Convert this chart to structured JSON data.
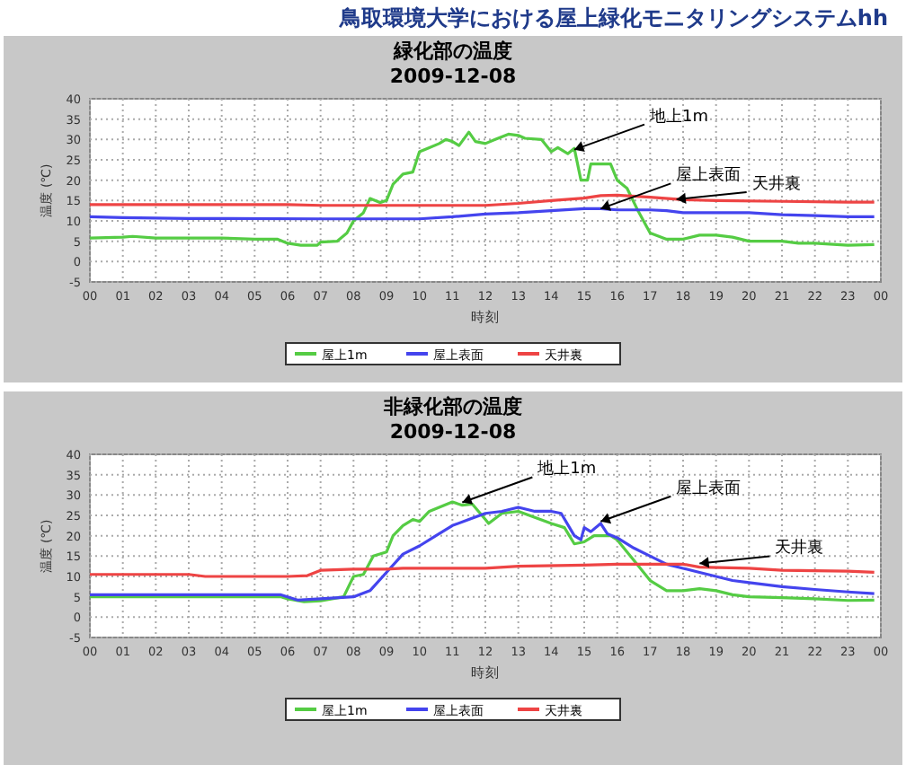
{
  "chart_data": [
    {
      "type": "line",
      "title": "緑化部の温度",
      "subtitle": "2009-12-08",
      "xlabel": "時刻",
      "ylabel": "温度 (℃)",
      "annotations": [
        "鳥取環境大学における屋上緑化モニタリングシステムhh",
        {
          "text": "地上1m",
          "x": 14.7,
          "y": 27.5
        },
        {
          "text": "屋上表面",
          "x": 15.5,
          "y": 13
        },
        {
          "text": "天井裏",
          "x": 17.8,
          "y": 15.3
        }
      ],
      "xlim": [
        0,
        24
      ],
      "xticks": [
        {
          "value": 0,
          "label": "00"
        },
        {
          "value": 1,
          "label": "01"
        },
        {
          "value": 2,
          "label": "02"
        },
        {
          "value": 3,
          "label": "03"
        },
        {
          "value": 4,
          "label": "04"
        },
        {
          "value": 5,
          "label": "05"
        },
        {
          "value": 6,
          "label": "06"
        },
        {
          "value": 7,
          "label": "07"
        },
        {
          "value": 8,
          "label": "08"
        },
        {
          "value": 9,
          "label": "09"
        },
        {
          "value": 10,
          "label": "10"
        },
        {
          "value": 11,
          "label": "11"
        },
        {
          "value": 12,
          "label": "12"
        },
        {
          "value": 13,
          "label": "13"
        },
        {
          "value": 14,
          "label": "14"
        },
        {
          "value": 15,
          "label": "15"
        },
        {
          "value": 16,
          "label": "16"
        },
        {
          "value": 17,
          "label": "17"
        },
        {
          "value": 18,
          "label": "18"
        },
        {
          "value": 19,
          "label": "19"
        },
        {
          "value": 20,
          "label": "20"
        },
        {
          "value": 21,
          "label": "21"
        },
        {
          "value": 22,
          "label": "22"
        },
        {
          "value": 23,
          "label": "23"
        },
        {
          "value": 24,
          "label": "00"
        }
      ],
      "ylim": [
        -5,
        40
      ],
      "yticks": [
        -5,
        0,
        5,
        10,
        15,
        20,
        25,
        30,
        35,
        40
      ],
      "grid": true,
      "legend": "bottom",
      "marker": "none",
      "line_style": "solid",
      "series": [
        {
          "name": "屋上1m",
          "color": "#55cc44",
          "x": [
            0,
            1,
            1.3,
            2,
            3,
            4,
            5,
            5.7,
            6,
            6.4,
            6.9,
            7,
            7.5,
            7.8,
            8,
            8.3,
            8.5,
            8.8,
            9,
            9.2,
            9.5,
            9.8,
            10,
            10.3,
            10.6,
            10.8,
            11,
            11.2,
            11.5,
            11.7,
            12,
            12.3,
            12.7,
            13,
            13.2,
            13.7,
            14,
            14.2,
            14.5,
            14.7,
            14.9,
            15.1,
            15.2,
            15.8,
            16,
            16.3,
            16.6,
            17,
            17.5,
            18,
            18.5,
            19,
            19.5,
            20,
            21,
            21.5,
            22,
            23,
            23.8
          ],
          "values": [
            5.8,
            6,
            6.2,
            5.8,
            5.8,
            5.8,
            5.5,
            5.5,
            4.5,
            4,
            4,
            4.8,
            5,
            7,
            10,
            12,
            15.5,
            14.5,
            15,
            19,
            21.5,
            22,
            27,
            28,
            29,
            30,
            29.5,
            28.5,
            31.8,
            29.5,
            29,
            30,
            31.3,
            31,
            30.3,
            30,
            27,
            28,
            26.5,
            27.8,
            20,
            20,
            24,
            24,
            20,
            18,
            13,
            7,
            5.5,
            5.5,
            6.5,
            6.5,
            6,
            5,
            5,
            4.5,
            4.5,
            4,
            4.2
          ]
        },
        {
          "name": "屋上表面",
          "color": "#4444ee",
          "x": [
            0,
            1,
            3,
            7,
            9,
            10,
            11,
            12,
            13,
            14,
            15,
            15.5,
            16,
            17,
            17.5,
            18,
            20,
            21,
            22,
            23,
            23.8
          ],
          "values": [
            11,
            10.8,
            10.6,
            10.5,
            10.5,
            10.5,
            11,
            11.7,
            12,
            12.5,
            13,
            13,
            12.7,
            12.7,
            12.5,
            12,
            12,
            11.5,
            11.3,
            11,
            11
          ]
        },
        {
          "name": "天井裏",
          "color": "#ee4444",
          "x": [
            0,
            6,
            7,
            10,
            12,
            13,
            14,
            15,
            15.5,
            16,
            17,
            18,
            19,
            21,
            23,
            23.8
          ],
          "values": [
            14,
            14,
            13.8,
            13.8,
            13.8,
            14.3,
            15,
            15.6,
            16.2,
            16.3,
            15.8,
            15.2,
            15,
            14.8,
            14.6,
            14.6
          ]
        }
      ]
    },
    {
      "type": "line",
      "title": "非緑化部の温度",
      "subtitle": "2009-12-08",
      "xlabel": "時刻",
      "ylabel": "温度 (℃)",
      "annotations": [
        {
          "text": "地上1m",
          "x": 11.3,
          "y": 28.2
        },
        {
          "text": "屋上表面",
          "x": 15.5,
          "y": 23.5
        },
        {
          "text": "天井裏",
          "x": 18.5,
          "y": 13.2
        }
      ],
      "xlim": [
        0,
        24
      ],
      "xticks": [
        {
          "value": 0,
          "label": "00"
        },
        {
          "value": 1,
          "label": "01"
        },
        {
          "value": 2,
          "label": "02"
        },
        {
          "value": 3,
          "label": "03"
        },
        {
          "value": 4,
          "label": "04"
        },
        {
          "value": 5,
          "label": "05"
        },
        {
          "value": 6,
          "label": "06"
        },
        {
          "value": 7,
          "label": "07"
        },
        {
          "value": 8,
          "label": "08"
        },
        {
          "value": 9,
          "label": "09"
        },
        {
          "value": 10,
          "label": "10"
        },
        {
          "value": 11,
          "label": "11"
        },
        {
          "value": 12,
          "label": "12"
        },
        {
          "value": 13,
          "label": "13"
        },
        {
          "value": 14,
          "label": "14"
        },
        {
          "value": 15,
          "label": "15"
        },
        {
          "value": 16,
          "label": "16"
        },
        {
          "value": 17,
          "label": "17"
        },
        {
          "value": 18,
          "label": "18"
        },
        {
          "value": 19,
          "label": "19"
        },
        {
          "value": 20,
          "label": "20"
        },
        {
          "value": 21,
          "label": "21"
        },
        {
          "value": 22,
          "label": "22"
        },
        {
          "value": 23,
          "label": "23"
        },
        {
          "value": 24,
          "label": "00"
        }
      ],
      "ylim": [
        -5,
        40
      ],
      "yticks": [
        -5,
        0,
        5,
        10,
        15,
        20,
        25,
        30,
        35,
        40
      ],
      "grid": true,
      "legend": "bottom",
      "marker": "none",
      "line_style": "solid",
      "series": [
        {
          "name": "屋上1m",
          "color": "#55cc44",
          "x": [
            0,
            5.8,
            6,
            6.5,
            7,
            7.7,
            8,
            8.3,
            8.6,
            9,
            9.2,
            9.5,
            9.8,
            10,
            10.3,
            10.6,
            11,
            11.3,
            11.6,
            12,
            12.1,
            12.5,
            13,
            13.5,
            14,
            14.4,
            14.7,
            15,
            15.3,
            15.8,
            16,
            16.5,
            17,
            17.5,
            18,
            18.5,
            19,
            19.5,
            20,
            21,
            22,
            23,
            23.8
          ],
          "values": [
            5,
            5,
            4.5,
            3.8,
            4,
            5,
            10,
            10.5,
            15,
            16,
            20,
            22.5,
            24,
            23.5,
            26,
            27,
            28.3,
            27.5,
            27.8,
            24,
            23,
            25.5,
            26,
            24.5,
            23,
            22,
            18,
            18.5,
            20,
            20,
            19,
            14,
            9,
            6.5,
            6.5,
            7,
            6.5,
            5.5,
            5,
            4.8,
            4.5,
            4.1,
            4.2
          ]
        },
        {
          "name": "屋上表面",
          "color": "#4444ee",
          "x": [
            0,
            5.8,
            6.3,
            7,
            8,
            8.5,
            9,
            9.5,
            10,
            10.5,
            11,
            11.5,
            12,
            12.5,
            13,
            13.5,
            14,
            14.3,
            14.7,
            14.9,
            15,
            15.2,
            15.5,
            15.7,
            16,
            16.5,
            17,
            17.5,
            18,
            18.5,
            19,
            19.5,
            20,
            21,
            22,
            23,
            23.8
          ],
          "values": [
            5.5,
            5.5,
            4.2,
            4.5,
            5,
            6.5,
            11,
            15.5,
            17.5,
            20,
            22.5,
            24,
            25.5,
            26,
            27,
            26,
            26,
            25.5,
            20,
            19,
            22,
            21,
            23,
            20.5,
            19.5,
            17,
            15,
            13,
            12,
            11,
            10,
            9,
            8.5,
            7.5,
            6.8,
            6.2,
            5.8
          ]
        },
        {
          "name": "天井裏",
          "color": "#ee4444",
          "x": [
            0,
            2,
            3,
            3.5,
            6,
            6.6,
            7,
            8,
            9,
            9.5,
            12,
            13,
            15,
            16,
            18,
            18.5,
            20,
            21,
            23,
            23.8
          ],
          "values": [
            10.5,
            10.5,
            10.5,
            10,
            10,
            10.2,
            11.5,
            11.8,
            11.8,
            12,
            12,
            12.5,
            12.8,
            13,
            13,
            12.3,
            12,
            11.5,
            11.3,
            11
          ]
        }
      ]
    }
  ]
}
